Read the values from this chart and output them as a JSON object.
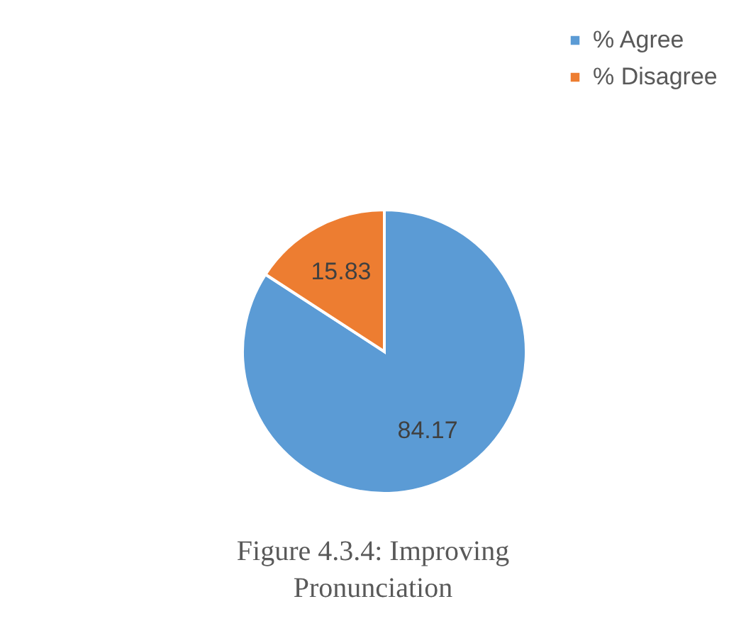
{
  "chart_data": {
    "type": "pie",
    "title": "Figure 4.3.4: Improving Pronunciation",
    "categories": [
      "% Agree",
      "% Disagree"
    ],
    "values": [
      84.17,
      15.83
    ],
    "colors": [
      "#5b9bd5",
      "#ed7d31"
    ],
    "data_labels": true,
    "legend": "top right"
  }
}
